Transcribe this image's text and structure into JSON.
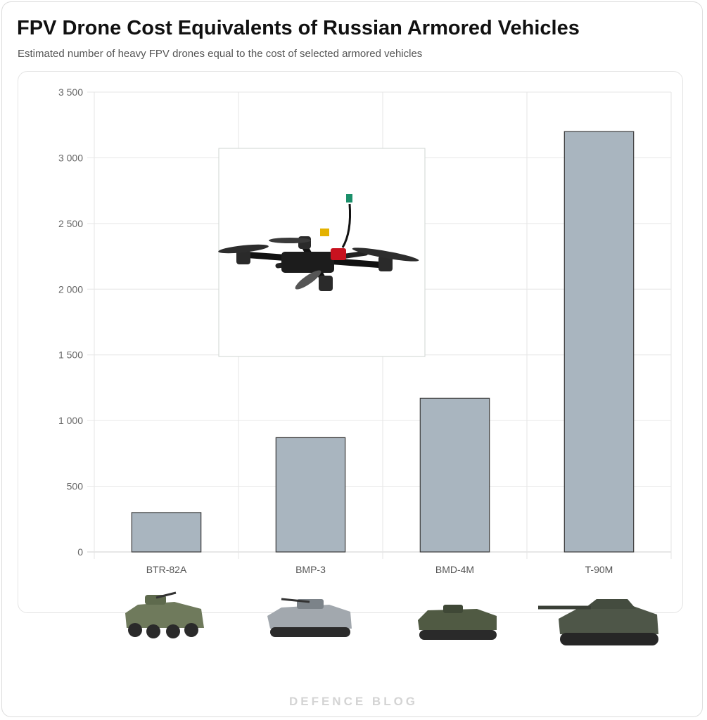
{
  "header": {
    "title": "FPV Drone Cost Equivalents of Russian Armored Vehicles",
    "subtitle": "Estimated number of heavy FPV drones equal to the cost of selected armored vehicles"
  },
  "footer": {
    "watermark": "DEFENCE BLOG"
  },
  "colors": {
    "bar": "#a9b5bf",
    "bar_border": "#3a3a3a",
    "grid": "#e6e6e6"
  },
  "chart_data": {
    "type": "bar",
    "title": "FPV Drone Cost Equivalents of Russian Armored Vehicles",
    "xlabel": "",
    "ylabel": "",
    "categories": [
      "BTR-82A",
      "BMP-3",
      "BMD-4M",
      "T-90M"
    ],
    "values": [
      300,
      870,
      1170,
      3200
    ],
    "ylim": [
      0,
      3500
    ],
    "yticks": [
      0,
      500,
      1000,
      1500,
      2000,
      2500,
      3000,
      3500
    ],
    "ytick_labels": [
      "0",
      "500",
      "1 000",
      "1 500",
      "2 000",
      "2 500",
      "3 000",
      "3 500"
    ],
    "grid": true,
    "legend": "none"
  },
  "images": {
    "inset": "fpv-drone-photo",
    "vehicles": [
      "btr-82a-photo",
      "bmp-3-photo",
      "bmd-4m-photo",
      "t-90m-photo"
    ]
  }
}
